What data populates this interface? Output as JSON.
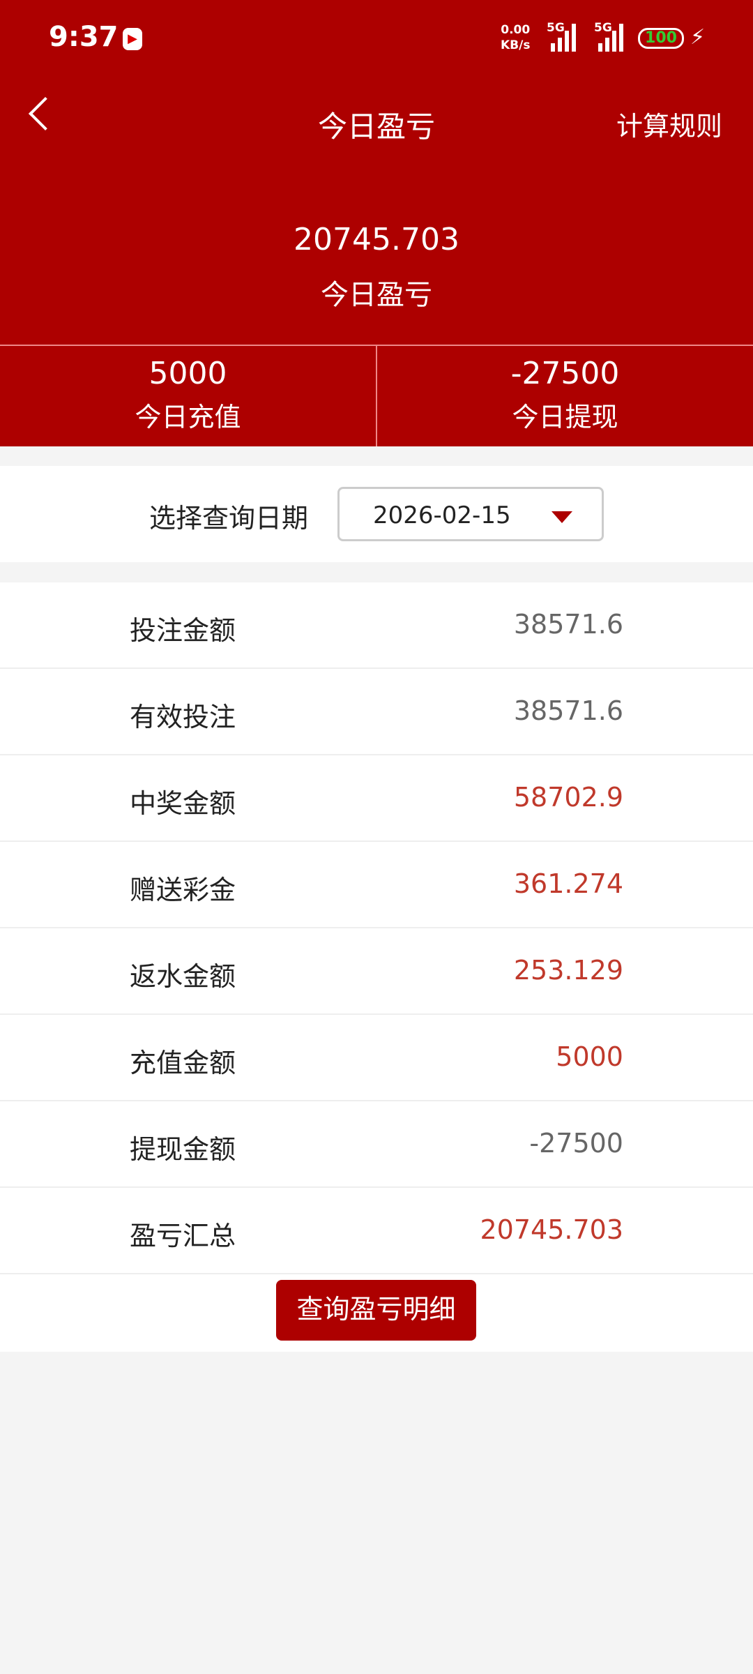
{
  "status_bar": {
    "time": "9:37",
    "net_speed": "0.00",
    "net_unit": "KB/s",
    "sim1": "5G",
    "sim2": "5G",
    "battery": "100"
  },
  "nav": {
    "title": "今日盈亏",
    "right_action": "计算规则"
  },
  "summary": {
    "total": "20745.703",
    "total_label": "今日盈亏",
    "recharge": "5000",
    "recharge_label": "今日充值",
    "withdraw": "-27500",
    "withdraw_label": "今日提现"
  },
  "date_filter": {
    "label": "选择查询日期",
    "value": "2026-02-15"
  },
  "rows": [
    {
      "label": "投注金额",
      "value": "38571.6",
      "color": "#666666"
    },
    {
      "label": "有效投注",
      "value": "38571.6",
      "color": "#666666"
    },
    {
      "label": "中奖金额",
      "value": "58702.9",
      "color": "#c0392b"
    },
    {
      "label": "赠送彩金",
      "value": "361.274",
      "color": "#c0392b"
    },
    {
      "label": "返水金额",
      "value": "253.129",
      "color": "#c0392b"
    },
    {
      "label": "充值金额",
      "value": "5000",
      "color": "#c0392b"
    },
    {
      "label": "提现金额",
      "value": "-27500",
      "color": "#666666"
    },
    {
      "label": "盈亏汇总",
      "value": "20745.703",
      "color": "#c0392b"
    }
  ],
  "detail_button": "查询盈亏明细",
  "colors": {
    "brand": "#ad0000"
  }
}
